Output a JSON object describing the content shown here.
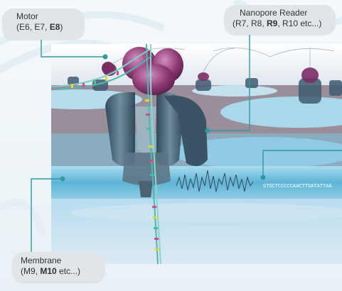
{
  "labels": {
    "motor": {
      "title": "Motor",
      "prefix": "(E6, E7, ",
      "bold": "E8",
      "suffix": ")"
    },
    "reader": {
      "title": "Nanopore Reader",
      "prefix": "(R7, R8, ",
      "bold": "R9",
      "suffix": ", R10 etc...)"
    },
    "membrane": {
      "title": "Membrane",
      "prefix": "(M9, ",
      "bold": "M10",
      "suffix": " etc...)"
    }
  },
  "sequence": "GTGCTCCCCCAACTTGATATTAA",
  "colors": {
    "pointer": "#2f9aa3",
    "membrane": "#7cc4e0",
    "motor_protein": "#8e3a73",
    "pore": "#3f5b70"
  }
}
